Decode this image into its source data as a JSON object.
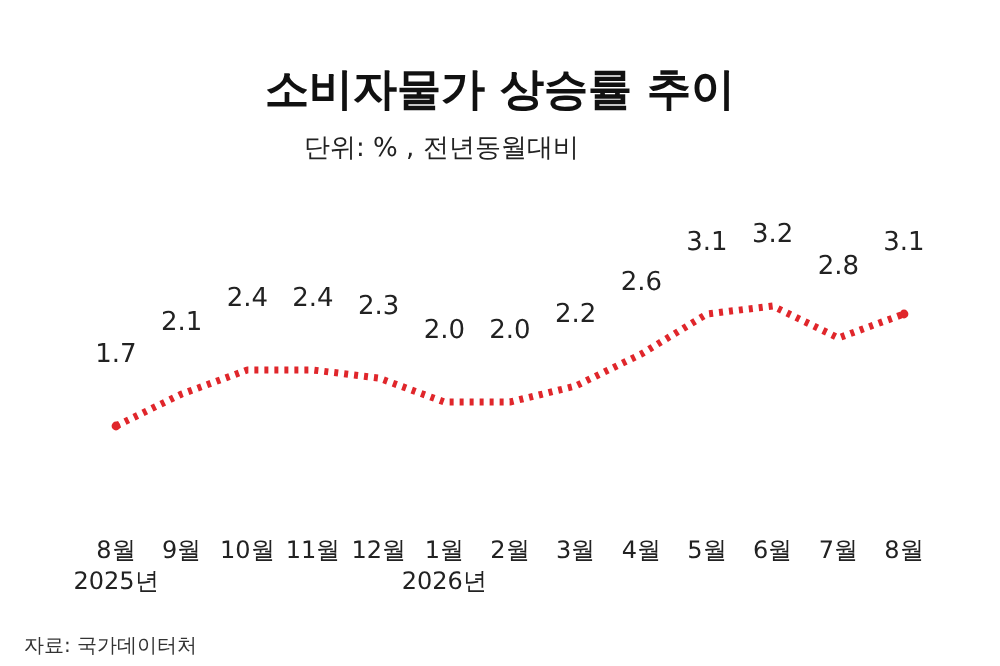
{
  "chart_data": {
    "type": "line",
    "title": "소비자물가 상승률 추이",
    "subtitle": "단위: % , 전년동월대비",
    "categories": [
      "8월\n2025년",
      "9월",
      "10월",
      "11월",
      "12월",
      "1월\n2026년",
      "2월",
      "3월",
      "4월",
      "5월",
      "6월",
      "7월",
      "8월"
    ],
    "series": [
      {
        "color": "#e0262b",
        "values": [
          1.7,
          2.1,
          2.4,
          2.4,
          2.3,
          2.0,
          2.0,
          2.2,
          2.6,
          3.1,
          3.2,
          2.8,
          3.1
        ],
        "value_labels": [
          "1.7",
          "2.1",
          "2.4",
          "2.4",
          "2.3",
          "2.0",
          "2.0",
          "2.2",
          "2.6",
          "3.1",
          "3.2",
          "2.8",
          "3.1"
        ]
      }
    ],
    "relative": false,
    "line_style": "dotted",
    "marker": "none",
    "annotations": [
      "자료: 국가데이터처"
    ]
  }
}
